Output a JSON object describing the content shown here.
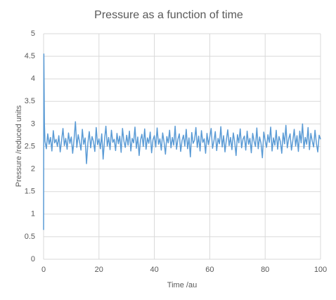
{
  "chart_data": {
    "type": "line",
    "title": "Pressure as a function of time",
    "x_label": "Time /au",
    "y_label": "Pressure /reduced units",
    "xlim": [
      0,
      100
    ],
    "xticks": [
      0,
      20,
      40,
      60,
      80,
      100
    ],
    "ylim": [
      0,
      5
    ],
    "yticks": [
      0,
      0.5,
      1,
      1.5,
      2,
      2.5,
      3,
      3.5,
      4,
      4.5,
      5
    ],
    "grid": true,
    "series": [
      {
        "color": "#5b9bd5",
        "x": [
          0,
          0.1,
          0.3,
          0.5,
          1,
          1.5,
          2,
          2.5,
          3,
          3.5,
          4,
          4.5,
          5,
          5.5,
          6,
          6.5,
          7,
          7.5,
          8,
          8.5,
          9,
          9.5,
          10,
          10.5,
          11,
          11.5,
          12,
          12.5,
          13,
          13.5,
          14,
          14.5,
          15,
          15.5,
          16,
          16.5,
          17,
          17.5,
          18,
          18.5,
          19,
          19.5,
          20,
          20.5,
          21,
          21.5,
          22,
          22.5,
          23,
          23.5,
          24,
          24.5,
          25,
          25.5,
          26,
          26.5,
          27,
          27.5,
          28,
          28.5,
          29,
          29.5,
          30,
          30.5,
          31,
          31.5,
          32,
          32.5,
          33,
          33.5,
          34,
          34.5,
          35,
          35.5,
          36,
          36.5,
          37,
          37.5,
          38,
          38.5,
          39,
          39.5,
          40,
          40.5,
          41,
          41.5,
          42,
          42.5,
          43,
          43.5,
          44,
          44.5,
          45,
          45.5,
          46,
          46.5,
          47,
          47.5,
          48,
          48.5,
          49,
          49.5,
          50,
          50.5,
          51,
          51.5,
          52,
          52.5,
          53,
          53.5,
          54,
          54.5,
          55,
          55.5,
          56,
          56.5,
          57,
          57.5,
          58,
          58.5,
          59,
          59.5,
          60,
          60.5,
          61,
          61.5,
          62,
          62.5,
          63,
          63.5,
          64,
          64.5,
          65,
          65.5,
          66,
          66.5,
          67,
          67.5,
          68,
          68.5,
          69,
          69.5,
          70,
          70.5,
          71,
          71.5,
          72,
          72.5,
          73,
          73.5,
          74,
          74.5,
          75,
          75.5,
          76,
          76.5,
          77,
          77.5,
          78,
          78.5,
          79,
          79.5,
          80,
          80.5,
          81,
          81.5,
          82,
          82.5,
          83,
          83.5,
          84,
          84.5,
          85,
          85.5,
          86,
          86.5,
          87,
          87.5,
          88,
          88.5,
          89,
          89.5,
          90,
          90.5,
          91,
          91.5,
          92,
          92.5,
          93,
          93.5,
          94,
          94.5,
          95,
          95.5,
          96,
          96.5,
          97,
          97.5,
          98,
          98.5,
          99,
          99.5,
          100
        ],
        "values": [
          0.65,
          4.55,
          3.0,
          2.62,
          2.45,
          2.78,
          2.55,
          2.7,
          2.4,
          2.85,
          2.58,
          2.66,
          2.5,
          2.74,
          2.38,
          2.63,
          2.9,
          2.52,
          2.68,
          2.44,
          2.8,
          2.57,
          2.71,
          2.35,
          2.65,
          3.05,
          2.48,
          2.76,
          2.6,
          2.42,
          2.88,
          2.55,
          2.69,
          2.12,
          2.58,
          2.83,
          2.47,
          2.72,
          2.61,
          2.39,
          2.92,
          2.54,
          2.67,
          2.45,
          2.78,
          2.22,
          2.64,
          2.95,
          2.51,
          2.7,
          2.43,
          2.86,
          2.59,
          2.66,
          2.41,
          2.79,
          2.56,
          2.73,
          2.37,
          2.9,
          2.62,
          2.48,
          2.75,
          2.53,
          2.84,
          2.4,
          2.68,
          2.58,
          2.93,
          2.46,
          2.71,
          2.3,
          2.64,
          2.77,
          2.5,
          2.89,
          2.44,
          2.69,
          2.57,
          2.82,
          2.36,
          2.65,
          2.74,
          2.49,
          2.91,
          2.55,
          2.67,
          2.42,
          2.8,
          2.6,
          2.33,
          2.72,
          2.58,
          2.86,
          2.47,
          2.7,
          2.53,
          2.95,
          2.44,
          2.66,
          2.78,
          2.39,
          2.63,
          2.75,
          2.51,
          2.88,
          2.45,
          2.69,
          2.27,
          2.81,
          2.57,
          2.64,
          2.92,
          2.48,
          2.73,
          2.4,
          2.85,
          2.59,
          2.67,
          2.35,
          2.79,
          2.54,
          2.71,
          2.9,
          2.46,
          2.62,
          2.83,
          2.41,
          2.68,
          2.56,
          2.94,
          2.49,
          2.74,
          2.38,
          2.65,
          2.87,
          2.52,
          2.7,
          2.43,
          2.8,
          2.6,
          2.3,
          2.76,
          2.58,
          2.89,
          2.47,
          2.66,
          2.73,
          2.42,
          2.84,
          2.55,
          2.68,
          2.36,
          2.79,
          2.62,
          2.5,
          2.91,
          2.45,
          2.71,
          2.57,
          2.25,
          2.82,
          2.64,
          2.48,
          2.76,
          2.59,
          2.93,
          2.4,
          2.69,
          2.53,
          2.86,
          2.44,
          2.72,
          2.61,
          2.35,
          2.8,
          2.56,
          2.97,
          2.47,
          2.67,
          2.78,
          2.42,
          2.63,
          2.88,
          2.51,
          2.74,
          2.39,
          2.84,
          2.58,
          3.0,
          2.46,
          2.7,
          2.55,
          2.92,
          2.43,
          2.79,
          2.62,
          2.49,
          2.86,
          2.57,
          2.38,
          2.75,
          2.66
        ]
      }
    ]
  }
}
